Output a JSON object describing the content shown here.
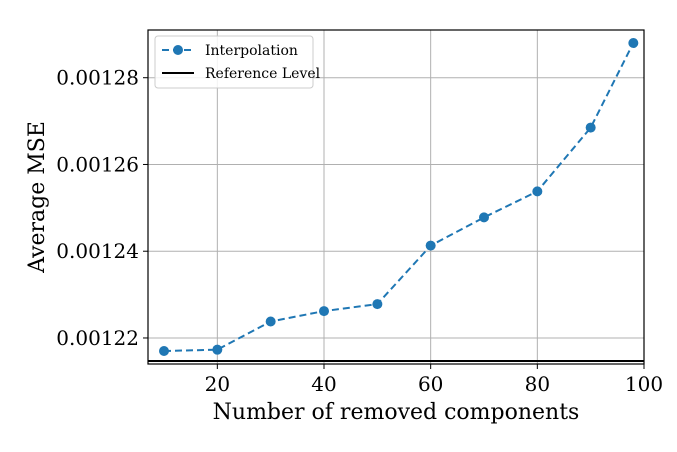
{
  "chart_data": {
    "type": "line",
    "title": "",
    "xlabel": "Number of removed components",
    "ylabel": "Average MSE",
    "xlim": [
      7,
      100
    ],
    "ylim": [
      0.001214,
      0.001291
    ],
    "xticks": [
      20,
      40,
      60,
      80,
      100
    ],
    "xtick_labels": [
      "20",
      "40",
      "60",
      "80",
      "100"
    ],
    "yticks": [
      0.00122,
      0.00124,
      0.00126,
      0.00128
    ],
    "ytick_labels": [
      "0.00122",
      "0.00124",
      "0.00126",
      "0.00128"
    ],
    "grid": true,
    "legend_position": "top-left",
    "series": [
      {
        "name": "Interpolation",
        "style": "dashed-line-with-circle-markers",
        "color": "#1f77b4",
        "x": [
          10,
          20,
          30,
          40,
          50,
          60,
          70,
          80,
          90,
          98
        ],
        "y": [
          0.001217,
          0.0012173,
          0.0012238,
          0.0012262,
          0.0012278,
          0.0012413,
          0.0012478,
          0.0012538,
          0.0012685,
          0.001288
        ]
      },
      {
        "name": "Reference Level",
        "style": "solid-horizontal-line",
        "color": "#000000",
        "y": 0.0012147
      }
    ]
  }
}
